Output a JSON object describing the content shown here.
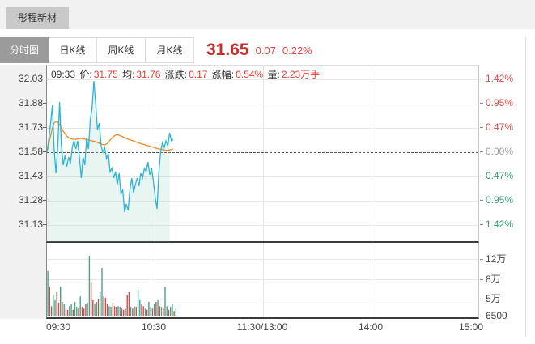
{
  "window": {
    "title": "彤程新材"
  },
  "tabs": [
    {
      "label": "分时图",
      "active": true
    },
    {
      "label": "日K线",
      "active": false
    },
    {
      "label": "周K线",
      "active": false
    },
    {
      "label": "月K线",
      "active": false
    }
  ],
  "quote": {
    "price": "31.65",
    "change": "0.07",
    "change_pct": "0.22%"
  },
  "info_bar": {
    "time": "09:33",
    "segments": [
      {
        "label": "价:",
        "value": "31.75"
      },
      {
        "label": "均:",
        "value": "31.76"
      },
      {
        "label": "涨跌:",
        "value": "0.17"
      },
      {
        "label": "涨幅:",
        "value": "0.54%"
      },
      {
        "label": "量:",
        "value": "2.23万手"
      }
    ]
  },
  "chart_data": {
    "type": "line",
    "title": "分时图",
    "x_axis": {
      "labels": [
        "09:30",
        "10:30",
        "11:30/13:00",
        "14:00",
        "15:00"
      ],
      "range_minutes": 240
    },
    "price_axis": {
      "labels": [
        "32.03",
        "31.88",
        "31.73",
        "31.58",
        "31.43",
        "31.28",
        "31.13"
      ],
      "pct_labels": [
        "1.42%",
        "0.95%",
        "0.47%",
        "0.00%",
        "0.47%",
        "0.95%",
        "1.42%"
      ],
      "base": 31.58,
      "max": 32.03,
      "min": 31.13
    },
    "volume_axis": {
      "labels": [
        "12万",
        "8万",
        "5万",
        "6500"
      ]
    },
    "series": [
      {
        "name": "price",
        "color": "#2cb5d6",
        "fill": "rgba(120,190,168,0.16)",
        "values": [
          31.58,
          31.66,
          31.76,
          31.87,
          31.6,
          31.45,
          31.62,
          31.89,
          31.62,
          31.5,
          31.56,
          31.49,
          31.55,
          31.51,
          31.61,
          31.65,
          31.6,
          31.65,
          31.55,
          31.42,
          31.55,
          31.5,
          31.67,
          31.6,
          31.78,
          31.85,
          32.02,
          31.88,
          31.72,
          31.76,
          31.62,
          31.58,
          31.61,
          31.54,
          31.57,
          31.46,
          31.48,
          31.42,
          31.46,
          31.38,
          31.45,
          31.32,
          31.35,
          31.21,
          31.26,
          31.22,
          31.35,
          31.42,
          31.33,
          31.38,
          31.42,
          31.37,
          31.45,
          31.42,
          31.48,
          31.46,
          31.52,
          31.44,
          31.48,
          31.4,
          31.3,
          31.23,
          31.45,
          31.58,
          31.64,
          31.61,
          31.65,
          31.62,
          31.7,
          31.65,
          31.66
        ]
      },
      {
        "name": "avg",
        "color": "#ee8a24",
        "values": [
          31.58,
          31.63,
          31.68,
          31.73,
          31.76,
          31.77,
          31.765,
          31.75,
          31.73,
          31.71,
          31.695,
          31.68,
          31.67,
          31.665,
          31.66,
          31.66,
          31.66,
          31.662,
          31.664,
          31.665,
          31.663,
          31.66,
          31.658,
          31.655,
          31.652,
          31.65,
          31.648,
          31.645,
          31.64,
          31.635,
          31.63,
          31.627,
          31.625,
          31.63,
          31.64,
          31.655,
          31.668,
          31.678,
          31.685,
          31.688,
          31.685,
          31.68,
          31.675,
          31.67,
          31.665,
          31.66,
          31.657,
          31.653,
          31.65,
          31.645,
          31.64,
          31.637,
          31.633,
          31.63,
          31.627,
          31.623,
          31.62,
          31.617,
          31.613,
          31.61,
          31.607,
          31.603,
          31.6,
          31.598,
          31.596,
          31.594,
          31.592,
          31.592,
          31.594,
          31.597,
          31.6
        ]
      }
    ],
    "volume_bars": {
      "up_color": "#4ba18c",
      "down_color": "#c4524e",
      "bars": [
        [
          0.75,
          "g"
        ],
        [
          0.49,
          "r"
        ],
        [
          0.17,
          "r"
        ],
        [
          0.36,
          "g"
        ],
        [
          0.27,
          "g"
        ],
        [
          0.4,
          "r"
        ],
        [
          0.23,
          "r"
        ],
        [
          0.49,
          "g"
        ],
        [
          0.24,
          "r"
        ],
        [
          0.2,
          "g"
        ],
        [
          0.13,
          "r"
        ],
        [
          0.11,
          "r"
        ],
        [
          0.17,
          "g"
        ],
        [
          0.2,
          "g"
        ],
        [
          0.11,
          "r"
        ],
        [
          0.24,
          "g"
        ],
        [
          0.16,
          "g"
        ],
        [
          0.13,
          "r"
        ],
        [
          0.33,
          "g"
        ],
        [
          0.16,
          "r"
        ],
        [
          0.13,
          "r"
        ],
        [
          0.2,
          "r"
        ],
        [
          0.23,
          "g"
        ],
        [
          1.0,
          "g"
        ],
        [
          0.57,
          "r"
        ],
        [
          0.27,
          "r"
        ],
        [
          0.2,
          "g"
        ],
        [
          0.24,
          "g"
        ],
        [
          0.29,
          "r"
        ],
        [
          0.4,
          "g"
        ],
        [
          0.8,
          "g"
        ],
        [
          0.33,
          "r"
        ],
        [
          0.31,
          "r"
        ],
        [
          0.2,
          "r"
        ],
        [
          0.17,
          "g"
        ],
        [
          0.16,
          "g"
        ],
        [
          0.23,
          "r"
        ],
        [
          0.17,
          "r"
        ],
        [
          0.16,
          "r"
        ],
        [
          0.17,
          "g"
        ],
        [
          0.16,
          "g"
        ],
        [
          0.13,
          "r"
        ],
        [
          0.11,
          "r"
        ],
        [
          0.13,
          "g"
        ],
        [
          0.36,
          "r"
        ],
        [
          0.4,
          "r"
        ],
        [
          0.16,
          "g"
        ],
        [
          0.13,
          "r"
        ],
        [
          0.17,
          "g"
        ],
        [
          0.16,
          "r"
        ],
        [
          0.44,
          "g"
        ],
        [
          0.27,
          "g"
        ],
        [
          0.2,
          "r"
        ],
        [
          0.17,
          "r"
        ],
        [
          0.13,
          "g"
        ],
        [
          0.11,
          "r"
        ],
        [
          0.24,
          "g"
        ],
        [
          0.16,
          "g"
        ],
        [
          0.13,
          "r"
        ],
        [
          0.2,
          "g"
        ],
        [
          0.24,
          "r"
        ],
        [
          0.27,
          "g"
        ],
        [
          0.17,
          "r"
        ],
        [
          0.16,
          "g"
        ],
        [
          0.13,
          "r"
        ],
        [
          0.49,
          "g"
        ],
        [
          0.17,
          "g"
        ],
        [
          0.11,
          "r"
        ],
        [
          0.16,
          "g"
        ],
        [
          0.2,
          "g"
        ],
        [
          0.09,
          "r"
        ],
        [
          0.13,
          "g"
        ]
      ]
    }
  }
}
